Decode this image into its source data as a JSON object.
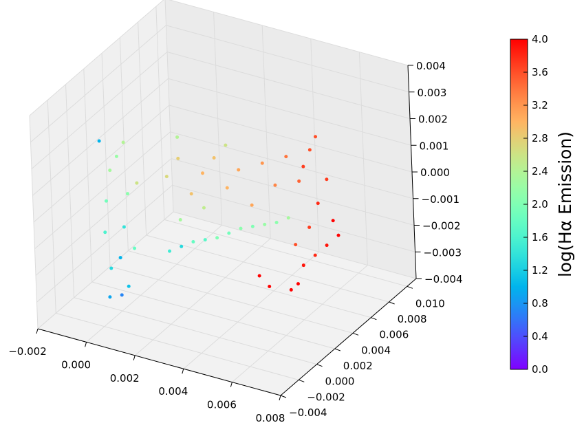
{
  "chart_data": {
    "type": "scatter",
    "projection": "3d",
    "grid": true,
    "colormap": "rainbow",
    "xlim": [
      -0.002,
      0.008
    ],
    "ylim": [
      -0.004,
      0.011
    ],
    "zlim": [
      -0.004,
      0.004
    ],
    "x_ticks": [
      "−0.002",
      "0.000",
      "0.002",
      "0.004",
      "0.006",
      "0.008"
    ],
    "y_ticks": [
      "−0.004",
      "−0.002",
      "0.000",
      "0.002",
      "0.004",
      "0.006",
      "0.008",
      "0.010"
    ],
    "z_ticks": [
      "−0.004",
      "−0.003",
      "−0.002",
      "−0.001",
      "0.000",
      "0.001",
      "0.002",
      "0.003",
      "0.004"
    ],
    "colorbar": {
      "label": "log(Hα Emission)",
      "range": [
        0.0,
        4.0
      ],
      "ticks": [
        "0.0",
        "0.4",
        "0.8",
        "1.2",
        "1.6",
        "2.0",
        "2.4",
        "2.8",
        "3.2",
        "3.6",
        "4.0"
      ]
    },
    "points_columns": [
      "x",
      "y",
      "z",
      "log_halpha"
    ],
    "points": [
      [
        -0.0005,
        0,
        -0.0036,
        0.9
      ],
      [
        0.0,
        0,
        -0.0034,
        0.7
      ],
      [
        0.0003,
        0,
        -0.003,
        1.1
      ],
      [
        -0.0004,
        0,
        -0.0025,
        1.3
      ],
      [
        0.0,
        0,
        -0.002,
        1.0
      ],
      [
        -0.0006,
        0,
        -0.0012,
        1.6
      ],
      [
        0.0002,
        0,
        -0.0008,
        1.4
      ],
      [
        -0.0005,
        0,
        0.0,
        1.9
      ],
      [
        0.0004,
        0,
        0.0005,
        2.1
      ],
      [
        -0.0003,
        0,
        0.0012,
        2.3
      ],
      [
        0.0,
        0,
        0.0018,
        2.2
      ],
      [
        0.0003,
        0,
        0.0024,
        2.4
      ],
      [
        -0.0007,
        0,
        0.0022,
        1.0
      ],
      [
        0.0006,
        0,
        -0.0015,
        1.8
      ],
      [
        0.0008,
        0,
        0.001,
        2.6
      ],
      [
        0.0005,
        0.004,
        0.0,
        2.7
      ],
      [
        0.001,
        0.004,
        0.0008,
        2.8
      ],
      [
        0.0015,
        0.004,
        -0.0004,
        2.9
      ],
      [
        0.002,
        0.004,
        0.0005,
        3.0
      ],
      [
        0.0025,
        0.004,
        0.0012,
        2.9
      ],
      [
        0.003,
        0.004,
        0.0002,
        3.0
      ],
      [
        0.0035,
        0.004,
        0.001,
        3.1
      ],
      [
        0.004,
        0.004,
        -0.0002,
        3.1
      ],
      [
        0.0045,
        0.004,
        0.0015,
        3.2
      ],
      [
        0.005,
        0.004,
        0.0008,
        3.3
      ],
      [
        0.0055,
        0.004,
        0.002,
        3.4
      ],
      [
        0.006,
        0.004,
        0.0012,
        3.5
      ],
      [
        0.0065,
        0.004,
        0.0025,
        3.6
      ],
      [
        0.0062,
        0.004,
        0.0018,
        3.7
      ],
      [
        0.003,
        0.004,
        0.0018,
        2.6
      ],
      [
        0.001,
        0.004,
        0.0016,
        2.4
      ],
      [
        0.0005,
        0.004,
        -0.0028,
        1.5
      ],
      [
        0.001,
        0.004,
        -0.0025,
        1.3
      ],
      [
        0.0015,
        0.004,
        -0.0022,
        1.8
      ],
      [
        0.002,
        0.004,
        -0.002,
        1.7
      ],
      [
        0.0025,
        0.004,
        -0.0018,
        2.0
      ],
      [
        0.003,
        0.004,
        -0.0015,
        1.9
      ],
      [
        0.0035,
        0.004,
        -0.0012,
        2.1
      ],
      [
        0.004,
        0.004,
        -0.001,
        2.0
      ],
      [
        0.0045,
        0.004,
        -0.0008,
        2.2
      ],
      [
        0.005,
        0.004,
        -0.0006,
        2.1
      ],
      [
        0.0055,
        0.004,
        -0.0003,
        2.3
      ],
      [
        0.001,
        0.004,
        -0.0015,
        2.3
      ],
      [
        0.002,
        0.004,
        -0.0008,
        2.5
      ],
      [
        0.0045,
        0.008,
        -0.0035,
        3.9
      ],
      [
        0.005,
        0.008,
        -0.003,
        3.8
      ],
      [
        0.0055,
        0.008,
        -0.0025,
        3.9
      ],
      [
        0.0048,
        0.008,
        -0.002,
        3.7
      ],
      [
        0.0058,
        0.008,
        -0.0015,
        4.0
      ],
      [
        0.0052,
        0.008,
        -0.001,
        3.8
      ],
      [
        0.006,
        0.008,
        -0.002,
        4.0
      ],
      [
        0.0042,
        0.008,
        -0.0028,
        3.6
      ],
      [
        0.0056,
        0.008,
        0.0,
        3.7
      ],
      [
        0.0052,
        0.008,
        0.0015,
        3.6
      ],
      [
        0.0042,
        0.004,
        -0.0028,
        4.0
      ],
      [
        0.0046,
        0.004,
        -0.0031,
        4.0
      ],
      [
        0.0055,
        0.004,
        -0.003,
        4.0
      ],
      [
        0.0058,
        0.004,
        -0.0027,
        4.0
      ]
    ]
  }
}
